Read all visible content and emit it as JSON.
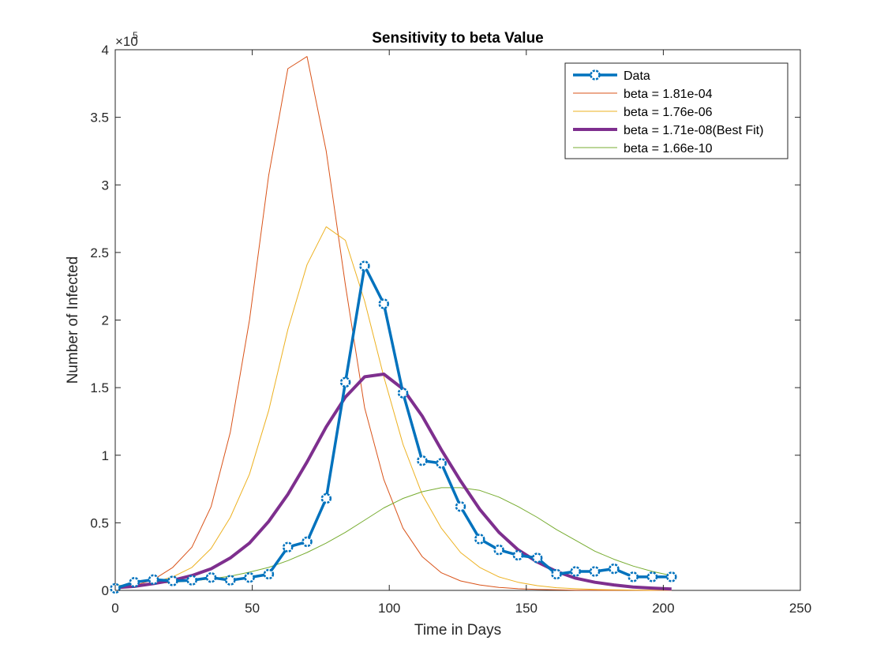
{
  "chart_data": {
    "type": "line",
    "title": "Sensitivity to beta Value",
    "xlabel": "Time in Days",
    "ylabel": "Number of Infected",
    "exponent_label": "×10",
    "exponent_power": "5",
    "xlim": [
      0,
      250
    ],
    "ylim": [
      0,
      400000
    ],
    "xticks": [
      0,
      50,
      100,
      150,
      200,
      250
    ],
    "xtick_labels": [
      "0",
      "50",
      "100",
      "150",
      "200",
      "250"
    ],
    "yticks": [
      0,
      50000,
      100000,
      150000,
      200000,
      250000,
      300000,
      350000,
      400000
    ],
    "ytick_labels": [
      "0",
      "0.5",
      "1",
      "1.5",
      "2",
      "2.5",
      "3",
      "3.5",
      "4"
    ],
    "grid": false,
    "legend_position": "top-right",
    "series": [
      {
        "name": "Data",
        "color": "#0072BD",
        "marker": "circle",
        "x": [
          0,
          7,
          14,
          21,
          28,
          35,
          42,
          49,
          56,
          63,
          70,
          77,
          84,
          91,
          98,
          105,
          112,
          119,
          126,
          133,
          140,
          147,
          154,
          161,
          168,
          175,
          182,
          189,
          196,
          203
        ],
        "y": [
          1500,
          6000,
          8000,
          7000,
          7500,
          9500,
          7500,
          9500,
          12000,
          32000,
          36000,
          68000,
          154000,
          240000,
          212000,
          146000,
          96000,
          94000,
          62000,
          38000,
          30000,
          26000,
          24000,
          12000,
          14000,
          14000,
          16000,
          10000,
          10000,
          10000
        ]
      },
      {
        "name": "beta = 1.81e-04",
        "color": "#D95319",
        "x": [
          0,
          7,
          14,
          21,
          28,
          35,
          42,
          49,
          56,
          63,
          70,
          77,
          84,
          91,
          98,
          105,
          112,
          119,
          126,
          133,
          140,
          147,
          154,
          161,
          168,
          175,
          182,
          189,
          196,
          203
        ],
        "y": [
          1500,
          3500,
          8000,
          17000,
          32000,
          62000,
          117000,
          200000,
          307000,
          386000,
          395000,
          325000,
          226000,
          135000,
          82000,
          46000,
          25000,
          13000,
          7000,
          4000,
          2200,
          1200,
          700,
          400,
          200,
          100,
          50,
          30,
          20,
          10
        ]
      },
      {
        "name": "beta = 1.76e-06",
        "color": "#EDB120",
        "x": [
          0,
          7,
          14,
          21,
          28,
          35,
          42,
          49,
          56,
          63,
          70,
          77,
          84,
          91,
          98,
          105,
          112,
          119,
          126,
          133,
          140,
          147,
          154,
          161,
          168,
          175,
          182,
          189,
          196,
          203
        ],
        "y": [
          1500,
          3000,
          6000,
          10000,
          17000,
          31000,
          54000,
          86000,
          133000,
          193000,
          241000,
          269000,
          259000,
          214000,
          158000,
          108000,
          71000,
          46000,
          28000,
          17000,
          10000,
          6000,
          3500,
          2000,
          1200,
          700,
          400,
          250,
          150,
          100
        ]
      },
      {
        "name": "beta = 1.71e-08(Best Fit)",
        "color": "#7E2F8E",
        "x": [
          0,
          7,
          14,
          21,
          28,
          35,
          42,
          49,
          56,
          63,
          70,
          77,
          84,
          91,
          98,
          105,
          112,
          119,
          126,
          133,
          140,
          147,
          154,
          161,
          168,
          175,
          182,
          189,
          196,
          203
        ],
        "y": [
          2000,
          3000,
          5000,
          7500,
          11000,
          16000,
          24000,
          35000,
          51000,
          71000,
          95000,
          121000,
          143000,
          158000,
          160000,
          149000,
          129000,
          104000,
          81000,
          60000,
          43000,
          30000,
          21000,
          14000,
          9000,
          6000,
          4000,
          2500,
          1700,
          1000
        ]
      },
      {
        "name": "beta = 1.66e-10",
        "color": "#77AC30",
        "x": [
          0,
          7,
          14,
          21,
          28,
          35,
          42,
          49,
          56,
          63,
          70,
          77,
          84,
          91,
          98,
          105,
          112,
          119,
          126,
          133,
          140,
          147,
          154,
          161,
          168,
          175,
          182,
          189,
          196,
          203
        ],
        "y": [
          3500,
          4000,
          5000,
          6000,
          7000,
          8500,
          10500,
          13500,
          17000,
          22000,
          28000,
          35000,
          43000,
          52000,
          61000,
          68000,
          73000,
          76000,
          76000,
          74000,
          69000,
          62000,
          54000,
          45000,
          37000,
          29000,
          23000,
          18000,
          14000,
          11000
        ]
      }
    ]
  }
}
